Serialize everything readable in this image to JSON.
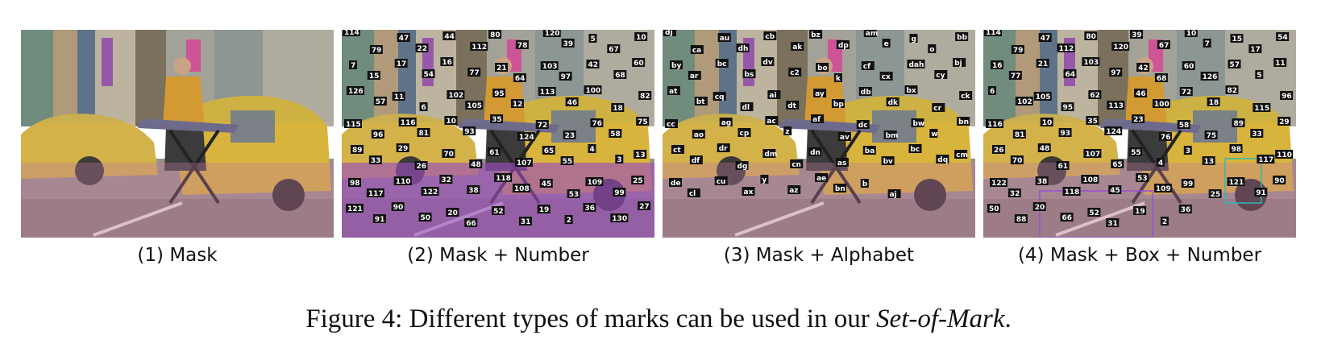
{
  "panels": [
    {
      "caption": "(1) Mask",
      "labels": []
    },
    {
      "caption": "(2) Mask + Number",
      "labels": [
        "114",
        "79",
        "47",
        "22",
        "44",
        "112",
        "80",
        "78",
        "120",
        "39",
        "5",
        "67",
        "10",
        "7",
        "15",
        "17",
        "54",
        "16",
        "77",
        "21",
        "64",
        "103",
        "97",
        "42",
        "68",
        "60",
        "126",
        "57",
        "11",
        "6",
        "102",
        "105",
        "95",
        "12",
        "113",
        "46",
        "100",
        "18",
        "82",
        "115",
        "96",
        "116",
        "81",
        "10",
        "93",
        "35",
        "124",
        "72",
        "23",
        "76",
        "58",
        "75",
        "89",
        "33",
        "29",
        "26",
        "70",
        "48",
        "61",
        "107",
        "65",
        "55",
        "4",
        "3",
        "13",
        "98",
        "117",
        "110",
        "122",
        "32",
        "38",
        "118",
        "108",
        "45",
        "53",
        "109",
        "99",
        "25",
        "121",
        "91",
        "90",
        "50",
        "20",
        "66",
        "52",
        "31",
        "19",
        "2",
        "36",
        "130",
        "27"
      ]
    },
    {
      "caption": "(3) Mask + Alphabet",
      "labels": [
        "dj",
        "ca",
        "au",
        "dh",
        "cb",
        "ak",
        "bz",
        "dp",
        "am",
        "e",
        "g",
        "o",
        "bb",
        "by",
        "ar",
        "bc",
        "bs",
        "dv",
        "c2",
        "bo",
        "k",
        "cf",
        "cx",
        "dah",
        "cy",
        "bj",
        "at",
        "bt",
        "cq",
        "dl",
        "ai",
        "dt",
        "ay",
        "bp",
        "db",
        "dk",
        "bx",
        "cr",
        "ck",
        "cc",
        "ao",
        "ag",
        "cp",
        "ac",
        "z",
        "af",
        "av",
        "dc",
        "bm",
        "bw",
        "w",
        "bn",
        "ct",
        "df",
        "dr",
        "dg",
        "dm",
        "cn",
        "dn",
        "as",
        "ba",
        "bv",
        "bc",
        "dq",
        "cm",
        "de",
        "cl",
        "cu",
        "ax",
        "y",
        "az",
        "ae",
        "bn",
        "b",
        "aj"
      ]
    },
    {
      "caption": "(4) Mask + Box + Number",
      "labels": [
        "114",
        "79",
        "47",
        "112",
        "80",
        "120",
        "39",
        "67",
        "10",
        "7",
        "15",
        "17",
        "54",
        "16",
        "77",
        "21",
        "64",
        "103",
        "97",
        "42",
        "68",
        "60",
        "126",
        "57",
        "5",
        "11",
        "6",
        "102",
        "105",
        "95",
        "62",
        "113",
        "46",
        "100",
        "72",
        "18",
        "82",
        "115",
        "96",
        "116",
        "81",
        "10",
        "93",
        "35",
        "124",
        "23",
        "76",
        "58",
        "75",
        "89",
        "33",
        "29",
        "26",
        "70",
        "48",
        "61",
        "107",
        "65",
        "55",
        "4",
        "3",
        "13",
        "98",
        "117",
        "110",
        "122",
        "32",
        "38",
        "118",
        "108",
        "45",
        "53",
        "109",
        "99",
        "25",
        "121",
        "91",
        "90",
        "50",
        "88",
        "20",
        "66",
        "52",
        "31",
        "19",
        "2",
        "36"
      ]
    }
  ],
  "figure_caption": {
    "prefix": "Figure 4: Different types of marks can be used in our ",
    "emphasis": "Set-of-Mark",
    "suffix": "."
  }
}
